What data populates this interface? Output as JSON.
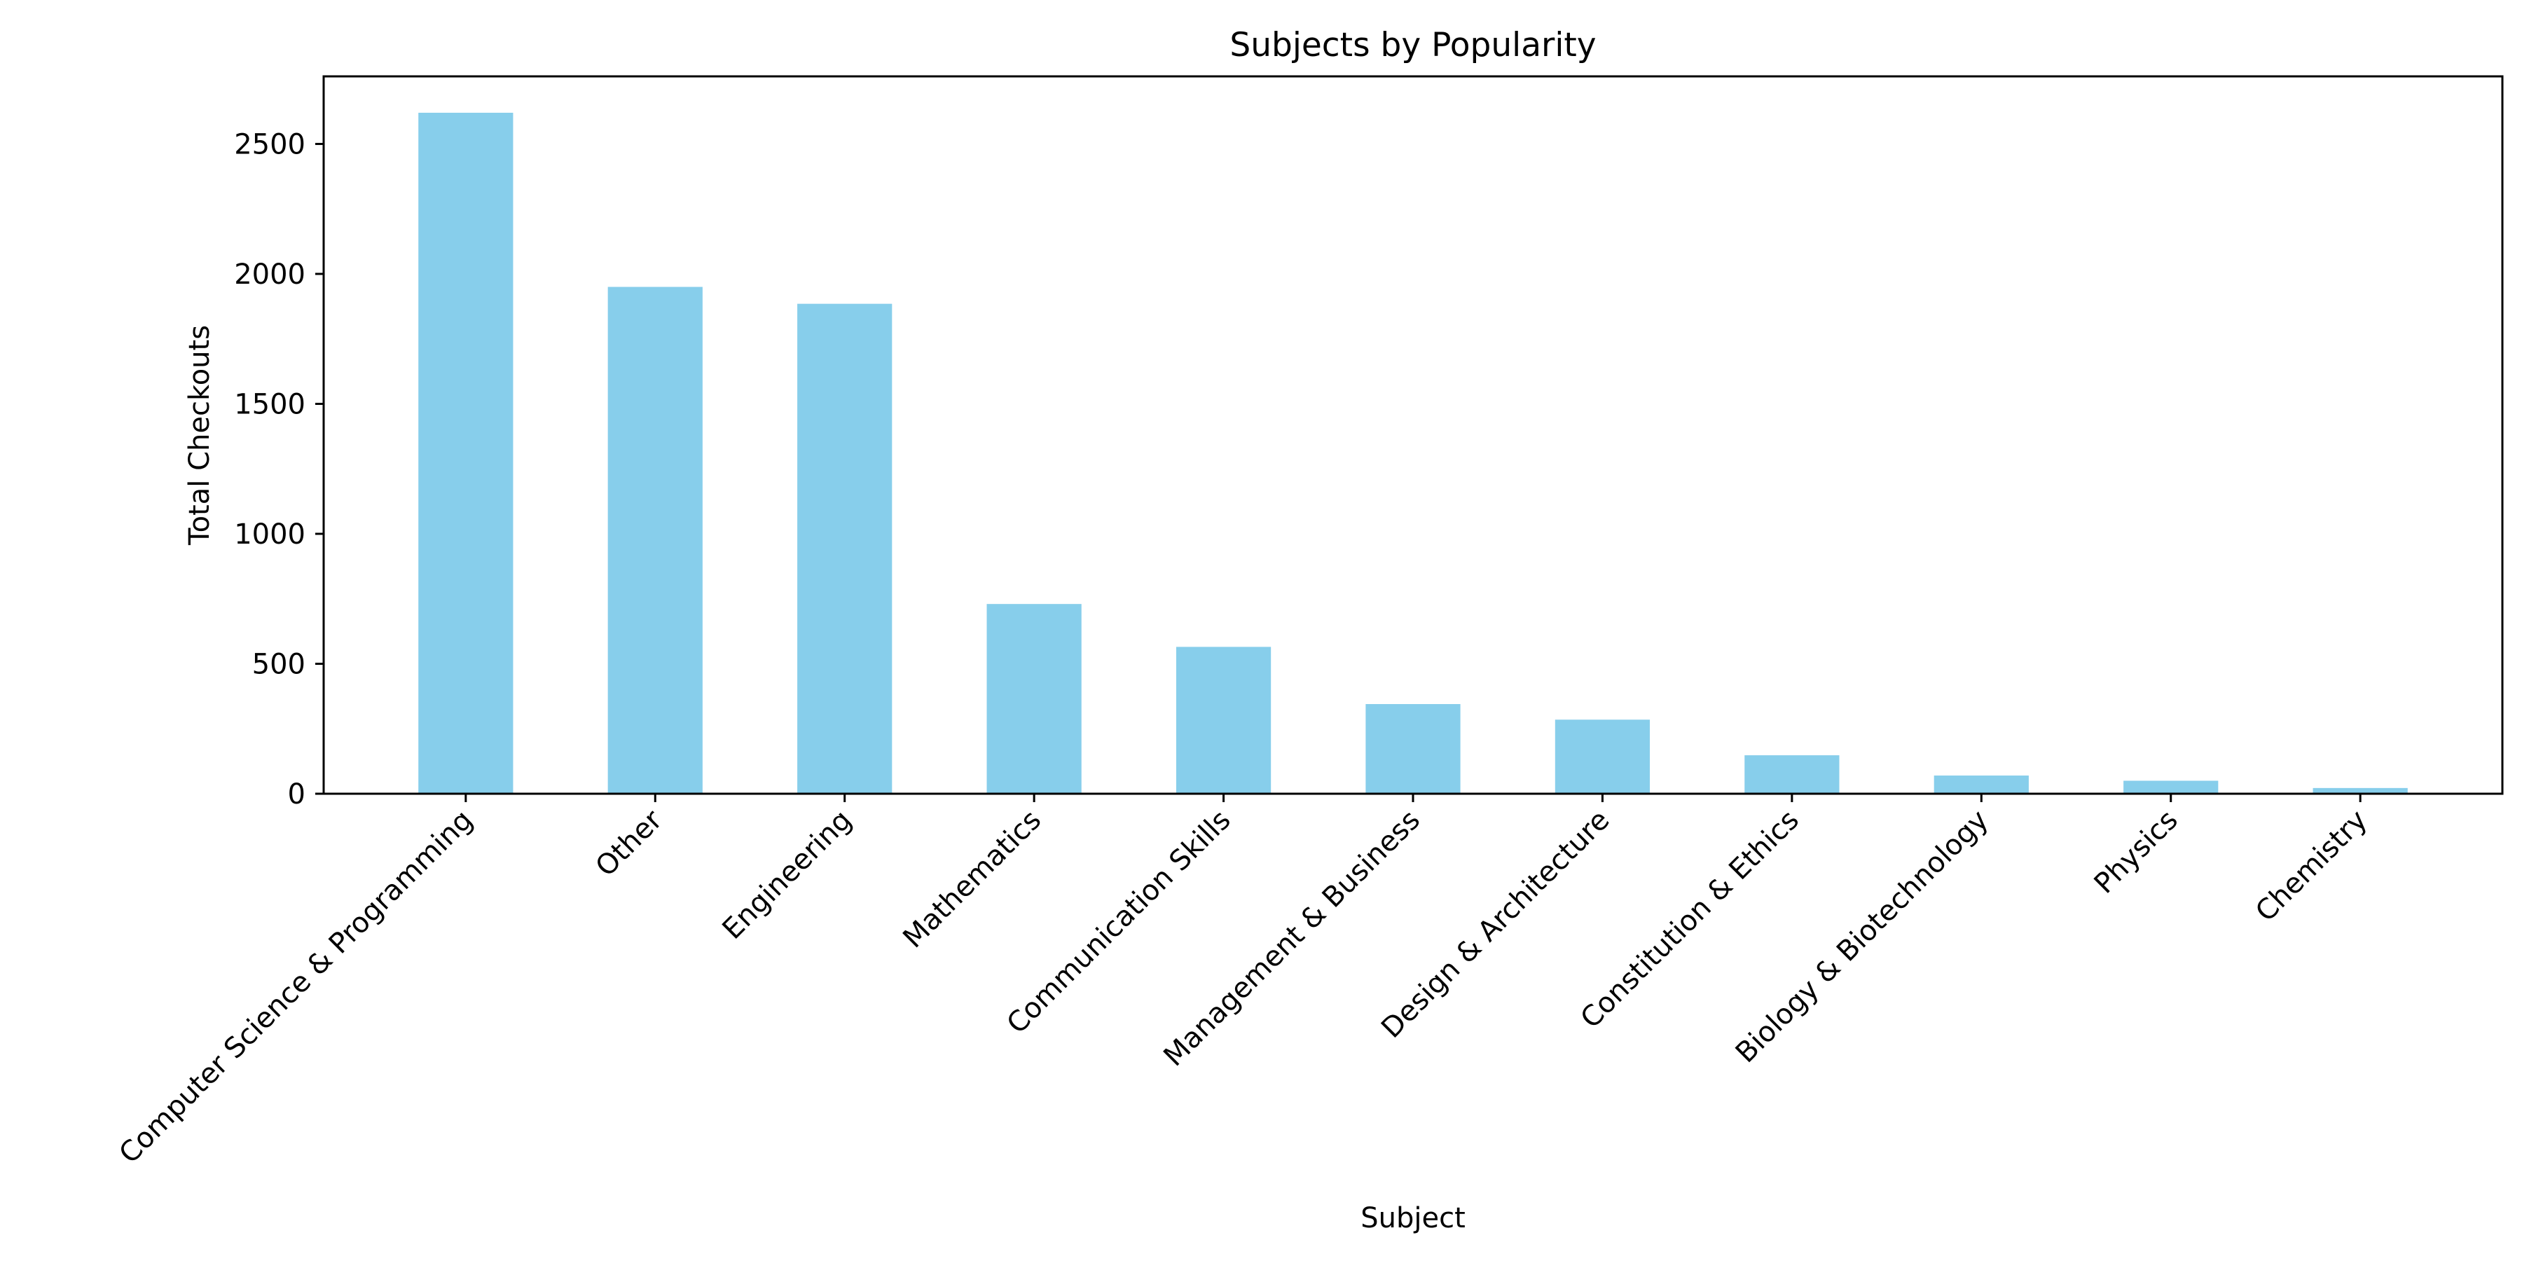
{
  "chart_data": {
    "type": "bar",
    "title": "Subjects by Popularity",
    "xlabel": "Subject",
    "ylabel": "Total Checkouts",
    "categories": [
      "Computer Science & Programming",
      "Other",
      "Engineering",
      "Mathematics",
      "Communication Skills",
      "Management & Business",
      "Design & Architecture",
      "Constitution & Ethics",
      "Biology & Biotechnology",
      "Physics",
      "Chemistry"
    ],
    "values": [
      2620,
      1950,
      1885,
      730,
      565,
      345,
      285,
      148,
      70,
      50,
      22
    ],
    "ylim": [
      0,
      2760
    ],
    "yticks": [
      0,
      500,
      1000,
      1500,
      2000,
      2500
    ],
    "bar_color": "#87CEEB",
    "grid": false,
    "legend": false
  }
}
